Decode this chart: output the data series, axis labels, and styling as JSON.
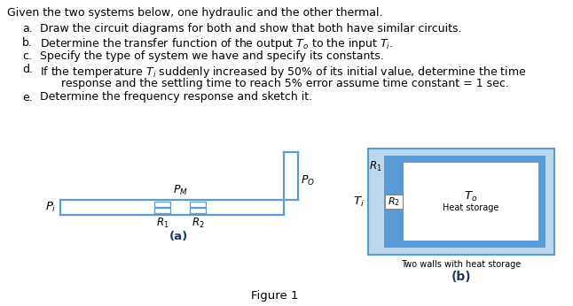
{
  "title_text": "Given the two systems below, one hydraulic and the other thermal.",
  "figure_label": "Figure 1",
  "diagram_a_label": "(a)",
  "diagram_b_label": "(b)",
  "b_caption": "Two walls with heat storage",
  "blue_color": "#5B9BD5",
  "light_blue": "#BDD7EE",
  "bg_color": "#FFFFFF",
  "text_color": "#000000",
  "font_size_main": 9.0,
  "font_size_small": 7.5
}
